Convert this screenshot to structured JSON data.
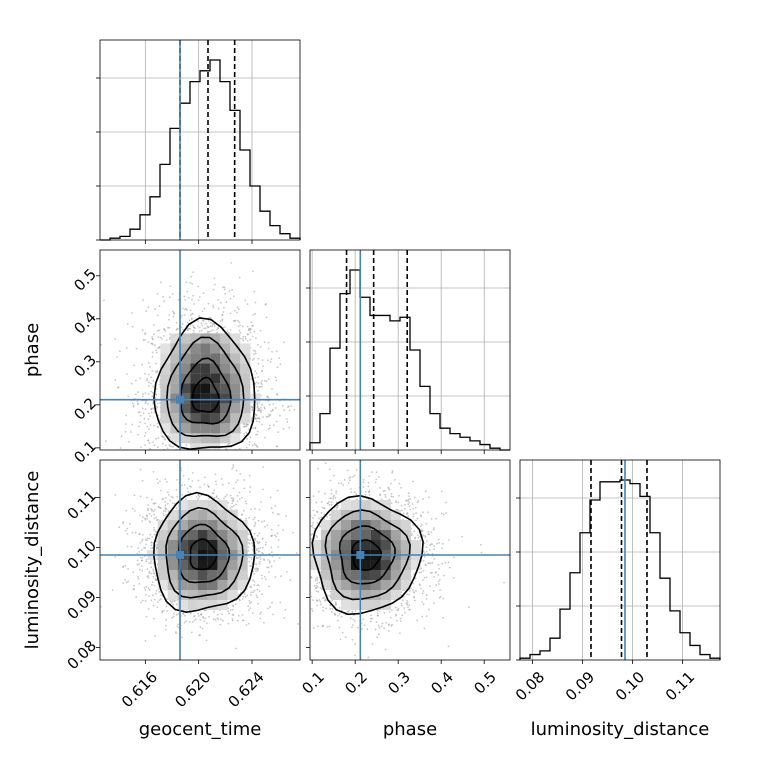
{
  "chart_data": {
    "type": "corner",
    "parameters": [
      "geocent_time",
      "phase",
      "luminosity_distance"
    ],
    "truths": {
      "geocent_time": 0.6186,
      "phase": 0.212,
      "luminosity_distance": 0.0985
    },
    "truth_color": "#4682b4",
    "grid": true,
    "axes": {
      "geocent_time": {
        "label": "geocent_time",
        "range": [
          0.6126,
          0.6276
        ],
        "ticks": [
          0.616,
          0.62,
          0.624
        ],
        "tick_labels": [
          "0.616",
          "0.620",
          "0.624"
        ]
      },
      "phase": {
        "label": "phase",
        "range": [
          0.095,
          0.56
        ],
        "ticks": [
          0.1,
          0.2,
          0.3,
          0.4,
          0.5
        ],
        "tick_labels": [
          "0.1",
          "0.2",
          "0.3",
          "0.4",
          "0.5"
        ]
      },
      "luminosity_distance": {
        "label": "luminosity_distance",
        "range": [
          0.0775,
          0.1175
        ],
        "ticks": [
          0.08,
          0.09,
          0.1,
          0.11
        ],
        "tick_labels": [
          "0.08",
          "0.09",
          "0.10",
          "0.11"
        ]
      }
    },
    "marginals": [
      {
        "parameter": "geocent_time",
        "quantiles": [
          0.6186,
          0.6207,
          0.6227
        ],
        "bin_edges_range": [
          0.6126,
          0.6276
        ],
        "counts": [
          0.0,
          0.01,
          0.02,
          0.06,
          0.14,
          0.24,
          0.42,
          0.62,
          0.76,
          0.88,
          0.94,
          1.0,
          0.88,
          0.72,
          0.5,
          0.3,
          0.16,
          0.08,
          0.035,
          0.01
        ]
      },
      {
        "parameter": "phase",
        "quantiles": [
          0.18,
          0.243,
          0.321
        ],
        "bin_edges_range": [
          0.095,
          0.56
        ],
        "counts": [
          0.04,
          0.2,
          0.56,
          0.86,
          0.99,
          0.84,
          0.74,
          0.74,
          0.71,
          0.73,
          0.55,
          0.35,
          0.2,
          0.12,
          0.09,
          0.07,
          0.05,
          0.03,
          0.01,
          0.0
        ]
      },
      {
        "parameter": "luminosity_distance",
        "quantiles": [
          0.0917,
          0.0978,
          0.1029
        ],
        "bin_edges_range": [
          0.0775,
          0.1175
        ],
        "counts": [
          0.01,
          0.03,
          0.05,
          0.12,
          0.28,
          0.48,
          0.7,
          0.88,
          0.98,
          0.98,
          0.99,
          0.97,
          0.9,
          0.7,
          0.45,
          0.27,
          0.15,
          0.08,
          0.03,
          0.01
        ]
      }
    ],
    "joint": [
      {
        "x": "geocent_time",
        "y": "phase",
        "peak": [
          0.6205,
          0.215
        ],
        "sigma": [
          0.0018,
          0.06
        ],
        "skew_y": 0.4
      },
      {
        "x": "geocent_time",
        "y": "luminosity_distance",
        "peak": [
          0.6203,
          0.0985
        ],
        "sigma": [
          0.0018,
          0.0055
        ],
        "skew_y": 0.0
      },
      {
        "x": "phase",
        "y": "luminosity_distance",
        "peak": [
          0.225,
          0.0985
        ],
        "sigma": [
          0.06,
          0.0055
        ],
        "skew_y": 0.0
      }
    ]
  }
}
